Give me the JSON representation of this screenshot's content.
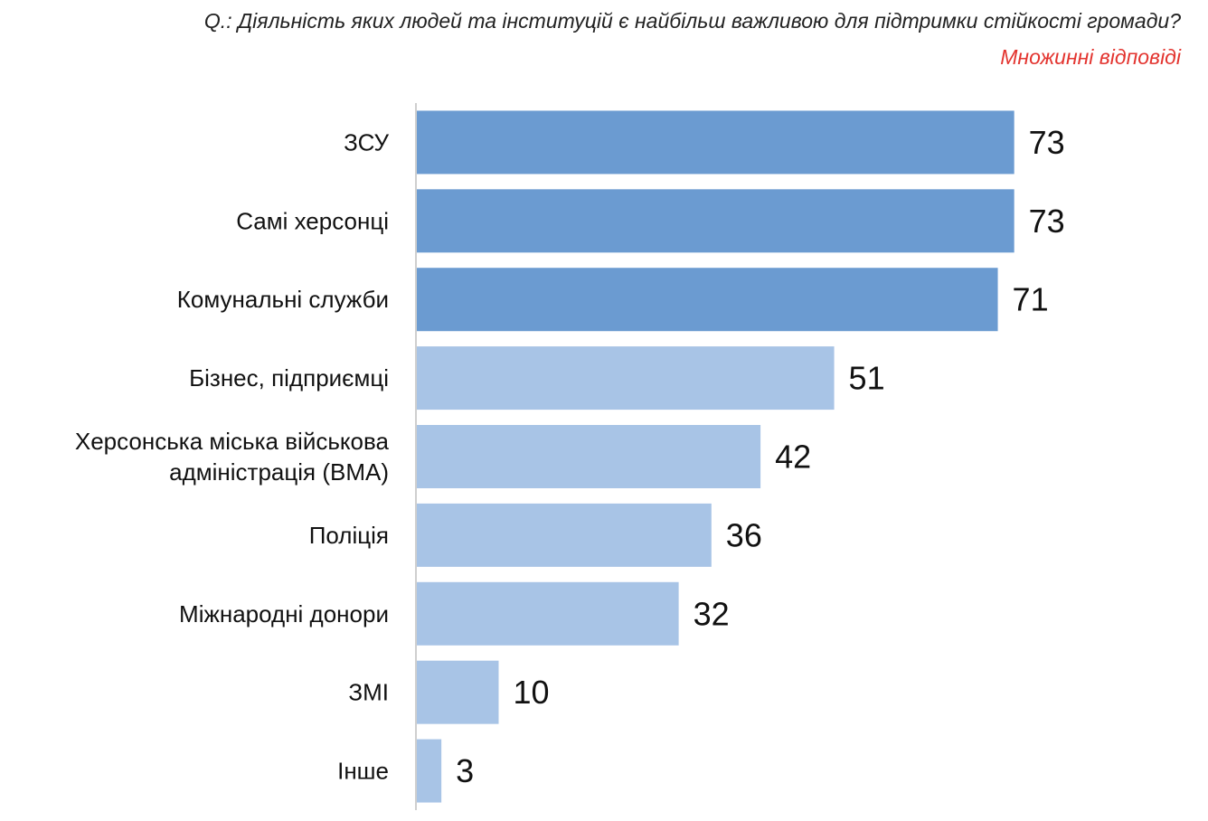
{
  "header": {
    "question": "Q.: Діяльність яких людей та інституцій є найбільш важливою для підтримки стійкості громади?",
    "note": "Множинні відповіді"
  },
  "colors": {
    "highlight_bar": "#6b9bd1",
    "regular_bar": "#a8c4e6",
    "axis": "#bfbfbf",
    "note": "#e3342f"
  },
  "chart_data": {
    "type": "bar",
    "orientation": "horizontal",
    "categories": [
      "ЗСУ",
      "Самі херсонці",
      "Комунальні служби",
      "Бізнес, підприємці",
      "Херсонська міська військова адміністрація (ВМА)",
      "Поліція",
      "Міжнародні донори",
      "ЗМІ",
      "Інше"
    ],
    "category_lines": [
      [
        "ЗСУ"
      ],
      [
        "Самі херсонці"
      ],
      [
        "Комунальні служби"
      ],
      [
        "Бізнес, підприємці"
      ],
      [
        "Херсонська міська військова",
        "адміністрація (ВМА)"
      ],
      [
        "Поліція"
      ],
      [
        "Міжнародні донори"
      ],
      [
        "ЗМІ"
      ],
      [
        "Інше"
      ]
    ],
    "values": [
      73,
      73,
      71,
      51,
      42,
      36,
      32,
      10,
      3
    ],
    "highlighted": [
      true,
      true,
      true,
      false,
      false,
      false,
      false,
      false,
      false
    ],
    "xlim": [
      0,
      100
    ],
    "title": "",
    "xlabel": "",
    "ylabel": "",
    "grid": false,
    "legend": "none"
  }
}
